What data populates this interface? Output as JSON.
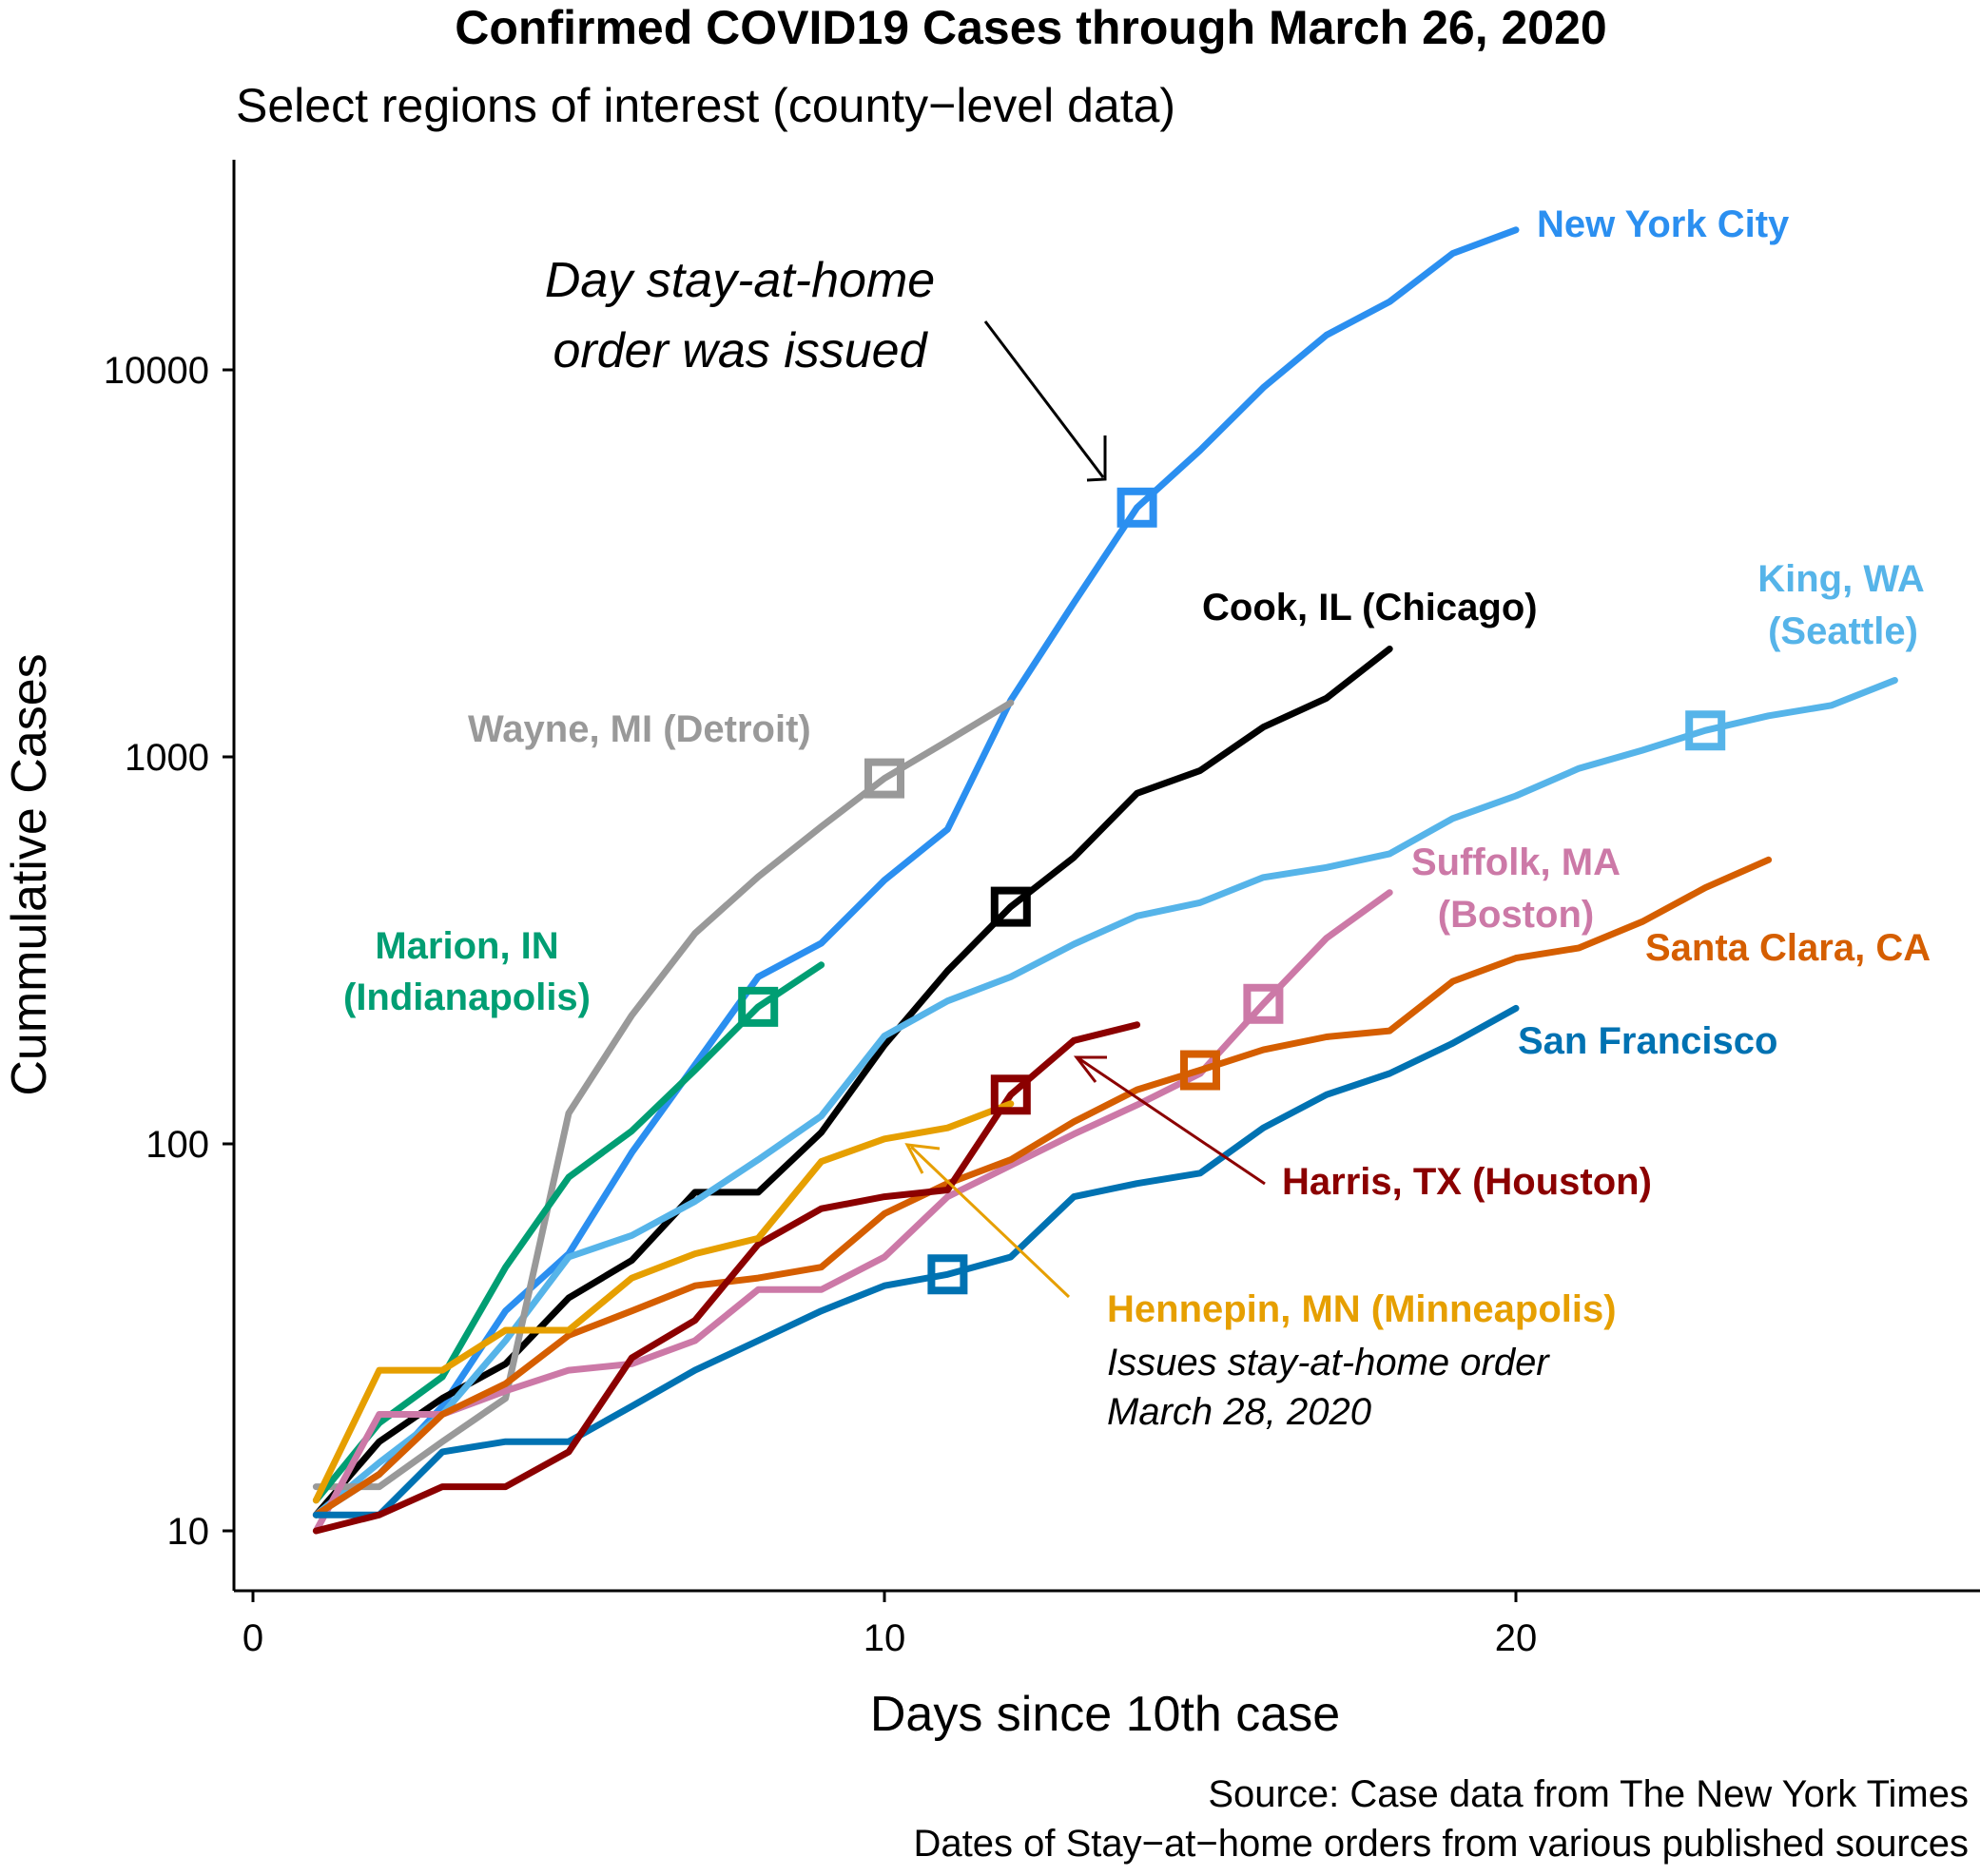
{
  "chart_data": {
    "type": "line",
    "title": "Confirmed COVID19 Cases through March 26, 2020",
    "subtitle": "Select regions of interest (county−level data)",
    "xlabel": "Days since 10th case",
    "ylabel": "Cummulative Cases",
    "x_scale": "linear",
    "y_scale": "log10",
    "xlim": [
      -0.2,
      27.3
    ],
    "ylim": [
      7.2,
      35000
    ],
    "x_ticks": [
      0,
      10,
      20
    ],
    "x_tick_labels": [
      "0",
      "10",
      "20"
    ],
    "y_ticks": [
      10,
      100,
      1000,
      10000
    ],
    "y_tick_labels": [
      "10",
      "100",
      "1000",
      "10000"
    ],
    "grid": false,
    "legend": "none (direct labels)",
    "series": [
      {
        "name": "New York City",
        "color": "#2b8ff0",
        "x": [
          1,
          2,
          3,
          4,
          5,
          6,
          7,
          8,
          9,
          10,
          11,
          12,
          13,
          14,
          15,
          16,
          17,
          18,
          19,
          20
        ],
        "y": [
          11,
          14,
          21,
          37,
          52,
          95,
          160,
          270,
          330,
          480,
          650,
          1400,
          2500,
          4408,
          6200,
          9000,
          12300,
          15000,
          20000,
          23000
        ],
        "marker_x": 14,
        "marker_y": 4408
      },
      {
        "name": "Cook, IL (Chicago)",
        "color": "#000000",
        "x": [
          1,
          2,
          3,
          4,
          5,
          6,
          7,
          8,
          9,
          10,
          11,
          12,
          13,
          14,
          15,
          16,
          17,
          18
        ],
        "y": [
          11,
          17,
          22,
          27,
          40,
          50,
          75,
          75,
          107,
          180,
          280,
          410,
          550,
          805,
          922,
          1194,
          1418,
          1900
        ],
        "marker_x": 12,
        "marker_y": 410
      },
      {
        "name": "King, WA (Seattle)",
        "color": "#56b4e9",
        "x": [
          1,
          2,
          3,
          4,
          5,
          6,
          7,
          8,
          9,
          10,
          11,
          12,
          13,
          14,
          15,
          16,
          17,
          18,
          19,
          20,
          21,
          22,
          23,
          24,
          25,
          26
        ],
        "y": [
          11,
          15,
          20,
          31,
          51,
          58,
          71,
          91,
          118,
          190,
          234,
          270,
          328,
          388,
          420,
          488,
          518,
          562,
          693,
          793,
          934,
          1040,
          1170,
          1277,
          1359,
          1577
        ],
        "marker_x": 23,
        "marker_y": 1170
      },
      {
        "name": "Wayne, MI (Detroit)",
        "color": "#999999",
        "x": [
          1,
          2,
          3,
          4,
          5,
          6,
          7,
          8,
          9,
          10,
          11,
          12
        ],
        "y": [
          13,
          13,
          17,
          22,
          120,
          215,
          350,
          490,
          660,
          880,
          1100,
          1380
        ],
        "marker_x": 10,
        "marker_y": 880
      },
      {
        "name": "Marion, IN (Indianapolis)",
        "color": "#009e73",
        "x": [
          1,
          2,
          3,
          4,
          5,
          6,
          7,
          8,
          9
        ],
        "y": [
          12,
          19,
          25,
          48,
          82,
          108,
          155,
          226,
          290
        ],
        "marker_x": 8,
        "marker_y": 226
      },
      {
        "name": "Suffolk, MA (Boston)",
        "color": "#cc79a7",
        "x": [
          1,
          2,
          3,
          4,
          5,
          6,
          7,
          8,
          9,
          10,
          11,
          12,
          13,
          14,
          15,
          16,
          17,
          18
        ],
        "y": [
          10,
          20,
          20,
          23,
          26,
          27,
          31,
          42,
          42,
          51,
          73,
          88,
          106,
          126,
          152,
          230,
          340,
          446
        ],
        "marker_x": 16,
        "marker_y": 230
      },
      {
        "name": "Santa Clara, CA",
        "color": "#d55e00",
        "x": [
          1,
          2,
          3,
          4,
          5,
          6,
          7,
          8,
          9,
          10,
          11,
          12,
          13,
          14,
          15,
          16,
          17,
          18,
          19,
          20,
          21,
          22,
          23,
          24
        ],
        "y": [
          11,
          14,
          20,
          24,
          32,
          37,
          43,
          45,
          48,
          66,
          79,
          91,
          114,
          138,
          155,
          175,
          189,
          196,
          263,
          302,
          321,
          375,
          459,
          542
        ],
        "marker_x": 15,
        "marker_y": 155
      },
      {
        "name": "San Francisco",
        "color": "#0072b2",
        "x": [
          1,
          2,
          3,
          4,
          5,
          6,
          7,
          8,
          9,
          10,
          11,
          12,
          13,
          14,
          15,
          16,
          17,
          18,
          19,
          20
        ],
        "y": [
          11,
          11,
          16,
          17,
          17,
          21,
          26,
          31,
          37,
          43,
          46,
          51,
          73,
          79,
          84,
          110,
          134,
          152,
          182,
          224
        ],
        "marker_x": 11,
        "marker_y": 46
      },
      {
        "name": "Harris, TX (Houston)",
        "color": "#8b0000",
        "x": [
          1,
          2,
          3,
          4,
          5,
          6,
          7,
          8,
          9,
          10,
          11,
          12,
          13,
          14
        ],
        "y": [
          10,
          11,
          13,
          13,
          16,
          28,
          35,
          55,
          68,
          73,
          76,
          134,
          185,
          203
        ],
        "marker_x": 12,
        "marker_y": 134
      },
      {
        "name": "Hennepin, MN (Minneapolis)",
        "color": "#e69f00",
        "x": [
          1,
          2,
          3,
          4,
          5,
          6,
          7,
          8,
          9,
          10,
          11,
          12
        ],
        "y": [
          12,
          26,
          26,
          33,
          33,
          45,
          52,
          57,
          90,
          103,
          110,
          127
        ]
      }
    ],
    "annotations": [
      {
        "text_lines": [
          "Day stay-at-home",
          "order was issued"
        ],
        "color": "#000000"
      },
      {
        "text_lines": [
          "Issues stay-at-home order",
          "March 28, 2020"
        ],
        "color": "#000000",
        "series": "Hennepin, MN (Minneapolis)"
      }
    ],
    "caption_lines": [
      "Source: Case data from The New York Times",
      "Dates of Stay−at−home orders from various published sources"
    ]
  },
  "labels": {
    "nyc": "New York City",
    "cook": "Cook, IL (Chicago)",
    "king_1": "King, WA",
    "king_2": "(Seattle)",
    "wayne": "Wayne, MI (Detroit)",
    "marion_1": "Marion, IN",
    "marion_2": "(Indianapolis)",
    "suffolk_1": "Suffolk, MA",
    "suffolk_2": "(Boston)",
    "santa_clara": "Santa Clara, CA",
    "sf": "San Francisco",
    "harris": "Harris, TX (Houston)",
    "hennepin": "Hennepin, MN (Minneapolis)"
  }
}
